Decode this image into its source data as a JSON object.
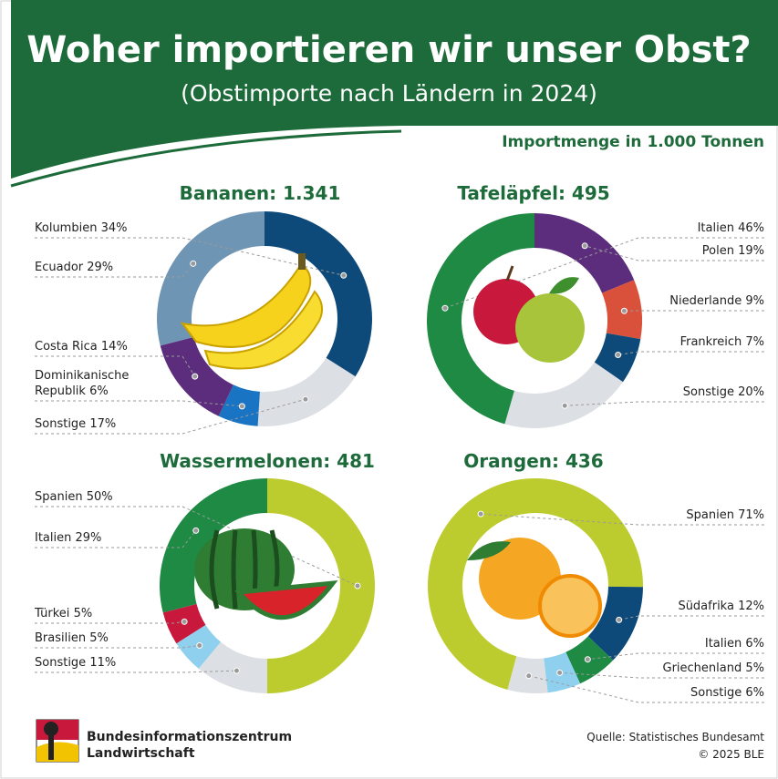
{
  "header": {
    "title": "Woher importieren wir unser Obst?",
    "subtitle": "(Obstimporte nach Ländern in 2024)",
    "unit": "Importmenge in 1.000 Tonnen"
  },
  "footer": {
    "org": [
      "Bundesinformationszentrum",
      "Landwirtschaft"
    ],
    "source": "Quelle: Statistisches Bundesamt",
    "copyright": "© 2025 BLE"
  },
  "chart_data": [
    {
      "type": "donut",
      "title": "Bananen: 1.341",
      "categories": [
        "Kolumbien",
        "Ecuador",
        "Costa Rica",
        "Dominikanische Republik",
        "Sonstige"
      ],
      "values": [
        34,
        29,
        14,
        6,
        17
      ],
      "value_labels": [
        "34%",
        "29%",
        "14%",
        "6%",
        "17%"
      ],
      "colors": [
        "#0d4a7a",
        "#6f95b5",
        "#5b2d7c",
        "#1a74c4",
        "#dcdfe3"
      ]
    },
    {
      "type": "donut",
      "title": "Tafeläpfel: 495",
      "categories": [
        "Italien",
        "Polen",
        "Niederlande",
        "Frankreich",
        "Sonstige"
      ],
      "values": [
        46,
        19,
        9,
        7,
        20
      ],
      "value_labels": [
        "46%",
        "19%",
        "9%",
        "7%",
        "20%"
      ],
      "colors": [
        "#1e8a44",
        "#5b2d7c",
        "#d9513a",
        "#0d4a7a",
        "#dcdfe3"
      ]
    },
    {
      "type": "donut",
      "title": "Wassermelonen: 481",
      "categories": [
        "Spanien",
        "Italien",
        "Türkei",
        "Brasilien",
        "Sonstige"
      ],
      "values": [
        50,
        29,
        5,
        5,
        11
      ],
      "value_labels": [
        "50%",
        "29%",
        "5%",
        "5%",
        "11%"
      ],
      "colors": [
        "#bccc2e",
        "#1e8a44",
        "#c8193c",
        "#8fd0ee",
        "#dcdfe3"
      ]
    },
    {
      "type": "donut",
      "title": "Orangen: 436",
      "categories": [
        "Spanien",
        "Südafrika",
        "Italien",
        "Griechenland",
        "Sonstige"
      ],
      "values": [
        71,
        12,
        6,
        5,
        6
      ],
      "value_labels": [
        "71%",
        "12%",
        "6%",
        "5%",
        "6%"
      ],
      "colors": [
        "#bccc2e",
        "#0d4a7a",
        "#1e8a44",
        "#8fd0ee",
        "#dcdfe3"
      ]
    }
  ]
}
